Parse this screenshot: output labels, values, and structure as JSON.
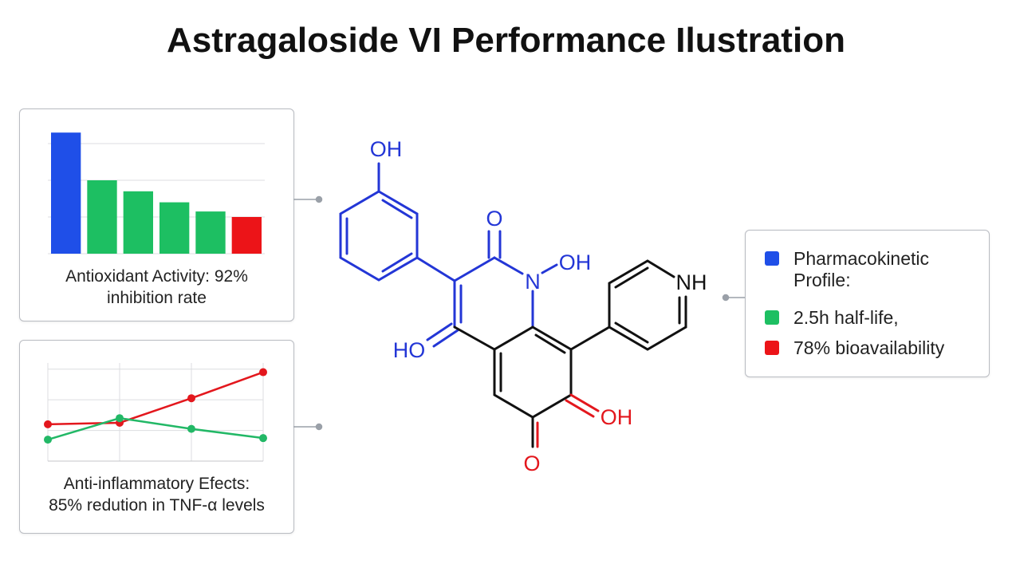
{
  "title": "Astragaloside VI Performance Ilustration",
  "panels": [
    {
      "chart_data": {
        "type": "bar",
        "categories": [
          null,
          null,
          null,
          null,
          null,
          null
        ],
        "values": [
          3.3,
          2.0,
          1.7,
          1.4,
          1.15,
          1.0
        ],
        "colors": [
          "#1f4fe8",
          "#1dbf62",
          "#1dbf62",
          "#1dbf62",
          "#1dbf62",
          "#ec1418"
        ],
        "ylim": [
          0,
          3.5
        ],
        "yticks": [
          1,
          2,
          3
        ],
        "grid": true
      },
      "caption": [
        "Antioxidant Activity: 92%",
        "inhibition rate"
      ]
    },
    {
      "chart_data": {
        "type": "line",
        "categories": [
          null,
          null,
          null,
          null
        ],
        "series": [
          {
            "color": "#e3171d",
            "values": [
              1.2,
              1.25,
              2.05,
              2.9
            ]
          },
          {
            "color": "#22b866",
            "values": [
              0.7,
              1.4,
              1.05,
              0.75
            ]
          }
        ],
        "ylim": [
          0,
          3.2
        ],
        "yticks": [
          1,
          2,
          3
        ],
        "grid": true
      },
      "caption": [
        "Anti-inflammatory Efects:",
        "85% redution in TNF-α levels"
      ]
    }
  ],
  "molecule": {
    "atoms": [
      "OH",
      "O",
      "N",
      "OH",
      "NH",
      "HO",
      "OH",
      "O"
    ]
  },
  "legend": [
    {
      "color": "#1f4fe8",
      "text": "Pharmacokinetic Profile:"
    },
    {
      "color": "#1dbf62",
      "text": "2.5h half-life,"
    },
    {
      "color": "#ec1418",
      "text": "78% bioavailability"
    }
  ]
}
